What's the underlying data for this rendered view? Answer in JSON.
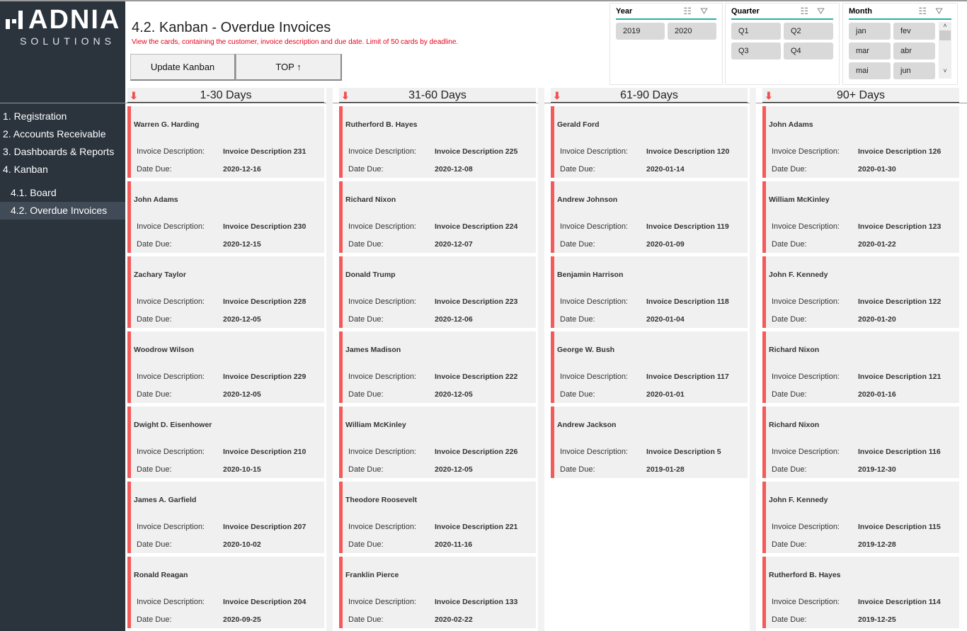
{
  "logo": {
    "main": "ADNIA",
    "sub": "SOLUTIONS"
  },
  "nav": {
    "items": [
      "1. Registration",
      "2. Accounts Receivable",
      "3. Dashboards & Reports",
      "4. Kanban"
    ],
    "sub_items": [
      "4.1. Board",
      "4.2. Overdue Invoices"
    ],
    "selected": "4.2. Overdue Invoices"
  },
  "header": {
    "title": "4.2. Kanban - Overdue Invoices",
    "subtitle": "View the cards, containing the customer, invoice description and due date.  Limit of 50 cards by deadline."
  },
  "buttons": {
    "update": "Update Kanban",
    "top": "TOP ↑"
  },
  "slicers": {
    "year": {
      "title": "Year",
      "options": [
        "2019",
        "2020"
      ]
    },
    "quarter": {
      "title": "Quarter",
      "options": [
        "Q1",
        "Q2",
        "Q3",
        "Q4"
      ]
    },
    "month": {
      "title": "Month",
      "options": [
        "jan",
        "fev",
        "mar",
        "abr",
        "mai",
        "jun"
      ]
    }
  },
  "labels": {
    "desc": "Invoice Description:",
    "due": "Date Due:"
  },
  "accent": "#f55a5a",
  "columns": [
    {
      "title": "1-30 Days",
      "cards": [
        {
          "customer": "Warren G. Harding",
          "invoice": "Invoice Description  231",
          "due": "2020-12-16"
        },
        {
          "customer": "John Adams",
          "invoice": "Invoice Description  230",
          "due": "2020-12-15"
        },
        {
          "customer": "Zachary Taylor",
          "invoice": "Invoice Description  228",
          "due": "2020-12-05"
        },
        {
          "customer": "Woodrow Wilson",
          "invoice": "Invoice Description  229",
          "due": "2020-12-05"
        },
        {
          "customer": "Dwight D. Eisenhower",
          "invoice": "Invoice Description  210",
          "due": "2020-10-15"
        },
        {
          "customer": "James A. Garfield",
          "invoice": "Invoice Description  207",
          "due": "2020-10-02"
        },
        {
          "customer": "Ronald Reagan",
          "invoice": "Invoice Description  204",
          "due": "2020-09-25"
        }
      ]
    },
    {
      "title": "31-60 Days",
      "cards": [
        {
          "customer": "Rutherford B. Hayes",
          "invoice": "Invoice Description  225",
          "due": "2020-12-08"
        },
        {
          "customer": "Richard Nixon",
          "invoice": "Invoice Description  224",
          "due": "2020-12-07"
        },
        {
          "customer": "Donald Trump",
          "invoice": "Invoice Description  223",
          "due": "2020-12-06"
        },
        {
          "customer": "James Madison",
          "invoice": "Invoice Description  222",
          "due": "2020-12-05"
        },
        {
          "customer": "William McKinley",
          "invoice": "Invoice Description  226",
          "due": "2020-12-05"
        },
        {
          "customer": "Theodore Roosevelt",
          "invoice": "Invoice Description  221",
          "due": "2020-11-16"
        },
        {
          "customer": "Franklin Pierce",
          "invoice": "Invoice Description  133",
          "due": "2020-02-22"
        }
      ]
    },
    {
      "title": "61-90 Days",
      "cards": [
        {
          "customer": "Gerald Ford",
          "invoice": "Invoice Description  120",
          "due": "2020-01-14"
        },
        {
          "customer": "Andrew Johnson",
          "invoice": "Invoice Description  119",
          "due": "2020-01-09"
        },
        {
          "customer": "Benjamin Harrison",
          "invoice": "Invoice Description  118",
          "due": "2020-01-04"
        },
        {
          "customer": "George W. Bush",
          "invoice": "Invoice Description  117",
          "due": "2020-01-01"
        },
        {
          "customer": "Andrew Jackson",
          "invoice": "Invoice Description  5",
          "due": "2019-01-28"
        }
      ]
    },
    {
      "title": "90+ Days",
      "cards": [
        {
          "customer": "John Adams",
          "invoice": "Invoice Description  126",
          "due": "2020-01-30"
        },
        {
          "customer": "William McKinley",
          "invoice": "Invoice Description  123",
          "due": "2020-01-22"
        },
        {
          "customer": "John F. Kennedy",
          "invoice": "Invoice Description  122",
          "due": "2020-01-20"
        },
        {
          "customer": "Richard Nixon",
          "invoice": "Invoice Description  121",
          "due": "2020-01-16"
        },
        {
          "customer": "Richard Nixon",
          "invoice": "Invoice Description  116",
          "due": "2019-12-30"
        },
        {
          "customer": "John F. Kennedy",
          "invoice": "Invoice Description  115",
          "due": "2019-12-28"
        },
        {
          "customer": "Rutherford B. Hayes",
          "invoice": "Invoice Description  114",
          "due": "2019-12-25"
        }
      ]
    }
  ]
}
